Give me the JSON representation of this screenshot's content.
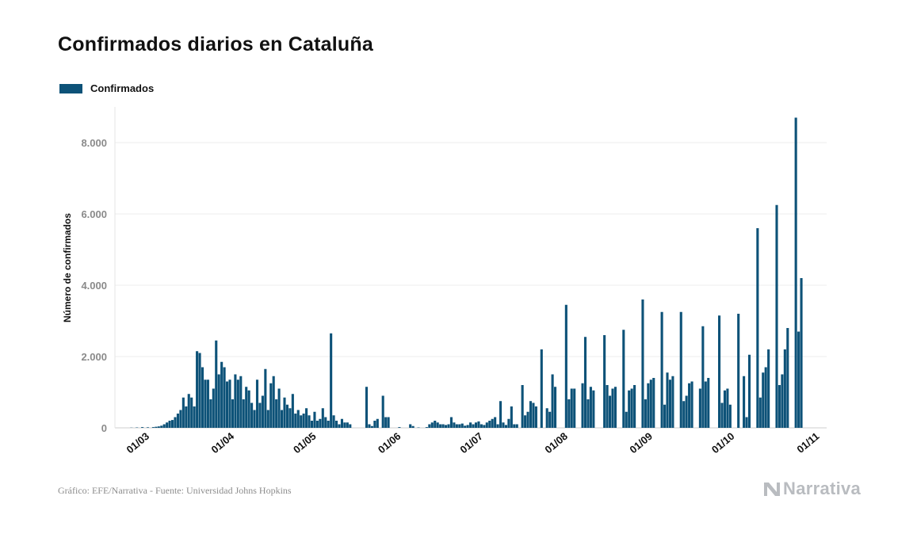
{
  "title": "Confirmados diarios en Cataluña",
  "legend": {
    "label": "Confirmados",
    "color": "#0d5278"
  },
  "footer": "Gráfico: EFE/Narrativa - Fuente: Universidad Johns Hopkins",
  "brand": {
    "name": "Narrativa",
    "icon": "narrativa-logo-icon"
  },
  "chart_data": {
    "type": "bar",
    "title": "Confirmados diarios en Cataluña",
    "xlabel": "",
    "ylabel": "Número de confirmados",
    "ylim": [
      0,
      9000
    ],
    "yticks": [
      0,
      2000,
      4000,
      6000,
      8000
    ],
    "ytick_labels": [
      "0",
      "2.000",
      "4.000",
      "6.000",
      "8.000"
    ],
    "grid": true,
    "x_start": "2020-02-20",
    "x_end": "2020-10-31",
    "xtick_labels": [
      "01/03",
      "01/04",
      "01/05",
      "01/06",
      "01/07",
      "01/08",
      "01/09",
      "01/10",
      "01/11"
    ],
    "xtick_day_index": [
      10,
      41,
      71,
      102,
      132,
      163,
      194,
      224,
      255
    ],
    "series": [
      {
        "name": "Confirmados",
        "values": [
          0,
          0,
          0,
          0,
          0,
          5,
          0,
          10,
          0,
          20,
          0,
          15,
          0,
          20,
          30,
          40,
          60,
          100,
          150,
          200,
          220,
          300,
          400,
          500,
          850,
          600,
          950,
          850,
          600,
          2150,
          2100,
          1700,
          1350,
          1350,
          800,
          1100,
          2450,
          1500,
          1850,
          1700,
          1300,
          1350,
          800,
          1500,
          1350,
          1450,
          800,
          1150,
          1050,
          700,
          500,
          1350,
          700,
          900,
          1650,
          500,
          1250,
          1450,
          800,
          1100,
          500,
          850,
          650,
          550,
          950,
          400,
          500,
          350,
          400,
          550,
          350,
          200,
          450,
          200,
          250,
          550,
          300,
          200,
          2650,
          350,
          200,
          100,
          250,
          150,
          150,
          100,
          0,
          0,
          0,
          0,
          0,
          1150,
          100,
          50,
          200,
          250,
          0,
          900,
          300,
          300,
          0,
          0,
          0,
          20,
          0,
          0,
          0,
          100,
          50,
          0,
          10,
          0,
          0,
          20,
          100,
          150,
          200,
          150,
          100,
          100,
          80,
          100,
          300,
          150,
          100,
          100,
          120,
          60,
          80,
          150,
          100,
          150,
          180,
          100,
          80,
          150,
          200,
          250,
          300,
          100,
          750,
          150,
          80,
          250,
          600,
          100,
          100,
          0,
          1200,
          350,
          450,
          750,
          700,
          600,
          0,
          2200,
          0,
          550,
          450,
          1500,
          1150,
          0,
          0,
          0,
          3450,
          800,
          1100,
          1100,
          0,
          0,
          1250,
          2550,
          800,
          1150,
          1050,
          0,
          0,
          0,
          2600,
          1200,
          900,
          1100,
          1150,
          0,
          0,
          2750,
          450,
          1050,
          1100,
          1200,
          0,
          0,
          3600,
          800,
          1250,
          1350,
          1400,
          0,
          0,
          3250,
          650,
          1550,
          1350,
          1450,
          0,
          0,
          3250,
          750,
          900,
          1250,
          1300,
          0,
          0,
          1100,
          2850,
          1300,
          1400,
          0,
          0,
          0,
          3150,
          700,
          1050,
          1100,
          650,
          0,
          0,
          3200,
          0,
          1450,
          300,
          2050,
          0,
          0,
          5600,
          850,
          1550,
          1700,
          2200,
          0,
          0,
          6250,
          1200,
          1500,
          2200,
          2800,
          0,
          0,
          8700,
          2700,
          4200
        ]
      }
    ]
  }
}
